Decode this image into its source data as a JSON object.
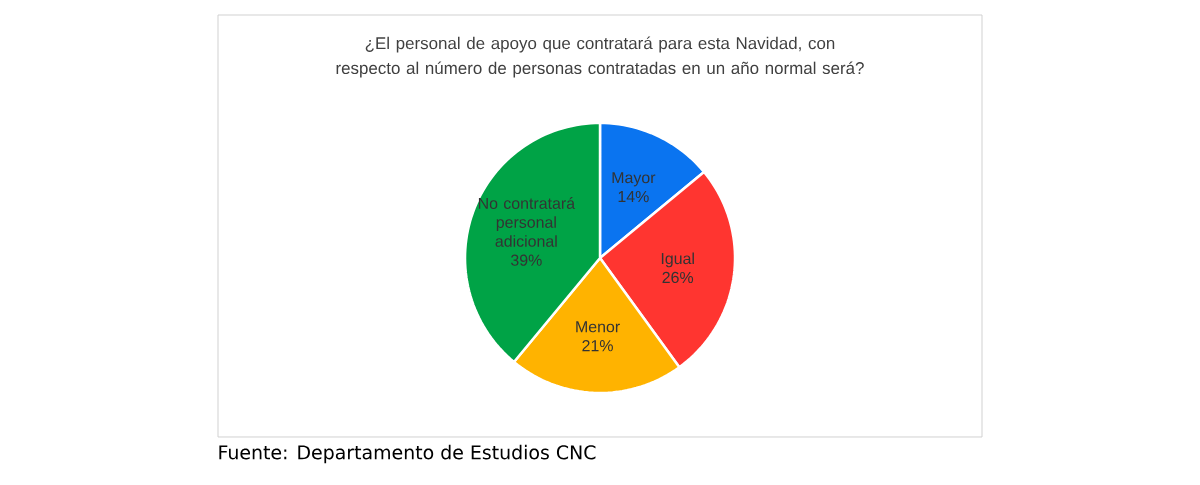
{
  "chart_data": {
    "type": "pie",
    "title": "¿El personal de apoyo que contratará para esta Navidad, con respecto al número de personas contratadas en un año normal será?",
    "categories": [
      "Mayor",
      "Igual",
      "Menor",
      "No contratará personal adicional"
    ],
    "values": [
      14,
      26,
      21,
      39
    ],
    "value_labels": [
      "14%",
      "26%",
      "21%",
      "39%"
    ],
    "colors": [
      "#0a74f0",
      "#ff3530",
      "#ffb300",
      "#00a346"
    ],
    "annotations": [
      "Fuente: Departamento de Estudios CNC"
    ]
  }
}
